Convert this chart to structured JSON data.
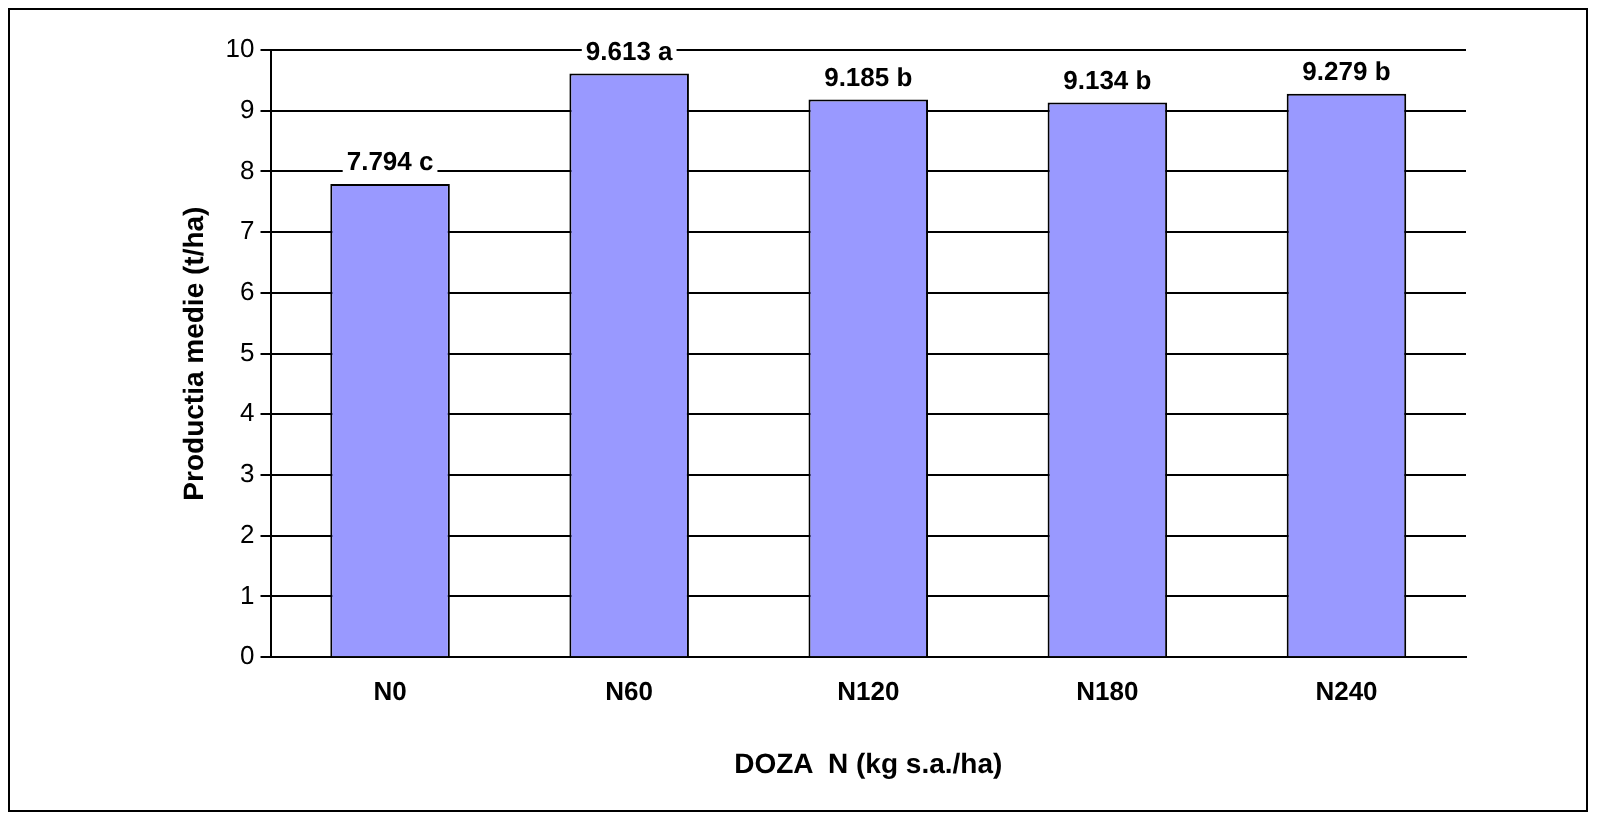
{
  "chart_data": {
    "type": "bar",
    "xlabel": "DOZA  N (kg s.a./ha)",
    "ylabel": "Productia medie (t/ha)",
    "categories": [
      "N0",
      "N60",
      "N120",
      "N180",
      "N240"
    ],
    "values": [
      7.794,
      9.613,
      9.185,
      9.134,
      9.279
    ],
    "value_labels": [
      "7.794 c",
      "9.613 a",
      "9.185 b",
      "9.134 b",
      "9.279 b"
    ],
    "color": "#9999ff",
    "ylim": [
      0,
      10
    ],
    "yticks": [
      0,
      1,
      2,
      3,
      4,
      5,
      6,
      7,
      8,
      9,
      10
    ],
    "grid": "y",
    "legend": false
  }
}
